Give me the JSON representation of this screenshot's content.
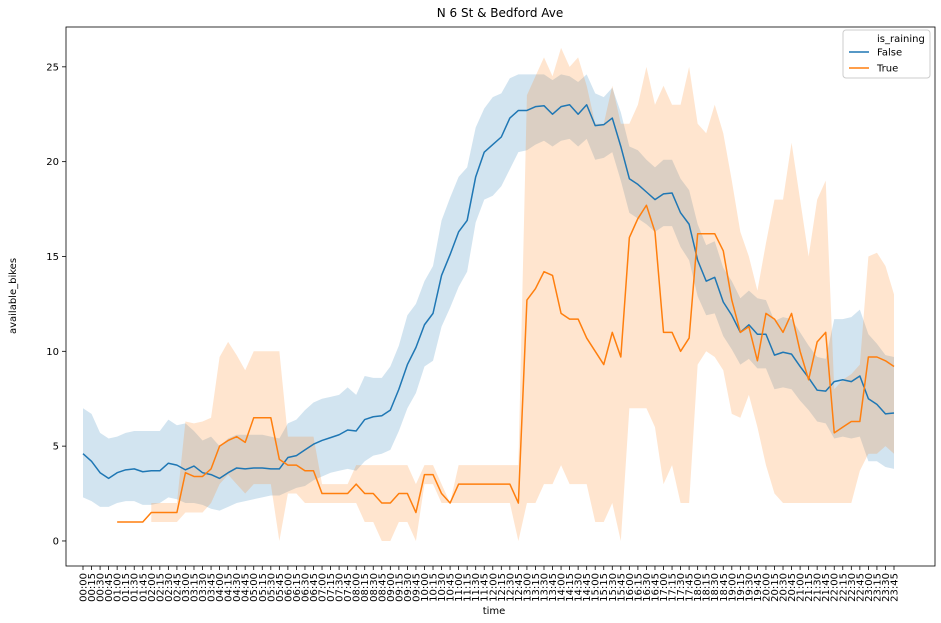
{
  "chart_data": {
    "type": "line",
    "title": "N 6 St & Bedford Ave",
    "xlabel": "time",
    "ylabel": "available_bikes",
    "categories": [
      "00:00",
      "00:15",
      "00:30",
      "00:45",
      "01:00",
      "01:15",
      "01:30",
      "01:45",
      "02:00",
      "02:15",
      "02:30",
      "02:45",
      "03:00",
      "03:15",
      "03:30",
      "03:45",
      "04:00",
      "04:15",
      "04:30",
      "04:45",
      "05:00",
      "05:15",
      "05:30",
      "05:45",
      "06:00",
      "06:15",
      "06:30",
      "06:45",
      "07:00",
      "07:15",
      "07:30",
      "07:45",
      "08:00",
      "08:15",
      "08:30",
      "08:45",
      "09:00",
      "09:15",
      "09:30",
      "09:45",
      "10:00",
      "10:15",
      "10:30",
      "10:45",
      "11:00",
      "11:15",
      "11:30",
      "11:45",
      "12:00",
      "12:15",
      "12:30",
      "12:45",
      "13:00",
      "13:15",
      "13:30",
      "13:45",
      "14:00",
      "14:15",
      "14:30",
      "14:45",
      "15:00",
      "15:15",
      "15:30",
      "15:45",
      "16:00",
      "16:15",
      "16:30",
      "16:45",
      "17:00",
      "17:15",
      "17:30",
      "17:45",
      "18:00",
      "18:15",
      "18:30",
      "18:45",
      "19:00",
      "19:15",
      "19:30",
      "19:45",
      "20:00",
      "20:15",
      "20:30",
      "20:45",
      "21:00",
      "21:15",
      "21:30",
      "21:45",
      "22:00",
      "22:15",
      "22:30",
      "22:45",
      "23:00",
      "23:15",
      "23:30",
      "23:45"
    ],
    "legend_title": "is_raining",
    "legend": "upper right",
    "series": [
      {
        "name": "False",
        "color": "#1f77b4",
        "values": [
          4.6,
          4.2,
          3.6,
          3.3,
          3.6,
          3.75,
          3.8,
          3.65,
          3.7,
          3.7,
          4.1,
          4.0,
          3.75,
          3.95,
          3.6,
          3.5,
          3.3,
          3.6,
          3.85,
          3.8,
          3.85,
          3.85,
          3.8,
          3.8,
          4.4,
          4.5,
          4.8,
          5.1,
          5.3,
          5.45,
          5.6,
          5.85,
          5.8,
          6.4,
          6.55,
          6.6,
          6.9,
          8.0,
          9.3,
          10.2,
          11.4,
          12.0,
          14.0,
          15.1,
          16.3,
          16.9,
          19.2,
          20.5,
          20.9,
          21.3,
          22.3,
          22.7,
          22.7,
          22.9,
          22.95,
          22.5,
          22.9,
          23.0,
          22.5,
          23.0,
          21.9,
          21.95,
          22.3,
          20.8,
          19.1,
          18.8,
          18.4,
          18.0,
          18.3,
          18.35,
          17.3,
          16.7,
          14.8,
          13.7,
          13.9,
          12.6,
          11.9,
          11.0,
          11.4,
          10.9,
          10.9,
          9.8,
          9.95,
          9.85,
          9.2,
          8.6,
          7.95,
          7.9,
          8.4,
          8.5,
          8.4,
          8.7,
          7.5,
          7.2,
          6.7,
          6.75
        ],
        "lower": [
          2.3,
          2.1,
          1.8,
          1.8,
          2.0,
          2.1,
          2.1,
          1.9,
          1.9,
          2.0,
          2.3,
          2.2,
          2.0,
          2.0,
          1.9,
          1.7,
          1.6,
          1.8,
          2.0,
          2.1,
          2.2,
          2.3,
          2.4,
          2.4,
          2.6,
          2.8,
          2.9,
          3.2,
          3.4,
          3.6,
          3.7,
          3.8,
          3.7,
          4.2,
          4.5,
          4.6,
          4.8,
          5.8,
          7.0,
          7.8,
          9.2,
          9.5,
          11.3,
          12.3,
          13.4,
          14.2,
          16.8,
          18.0,
          18.2,
          18.7,
          19.6,
          20.5,
          20.6,
          20.9,
          21.1,
          20.8,
          21.1,
          21.2,
          20.8,
          21.2,
          20.1,
          20.2,
          20.5,
          19.0,
          17.3,
          17.0,
          16.7,
          16.3,
          16.6,
          16.6,
          15.5,
          14.8,
          12.9,
          11.9,
          12.0,
          10.8,
          10.1,
          9.3,
          9.6,
          9.1,
          9.1,
          8.0,
          8.1,
          8.0,
          7.4,
          6.9,
          6.3,
          6.2,
          5.4,
          5.5,
          5.4,
          5.5,
          4.2,
          4.2,
          3.9,
          3.8
        ],
        "upper": [
          7.0,
          6.7,
          5.7,
          5.4,
          5.5,
          5.7,
          5.8,
          5.8,
          5.8,
          5.8,
          6.4,
          6.1,
          6.2,
          5.8,
          5.3,
          5.5,
          5.0,
          5.4,
          5.6,
          5.6,
          5.6,
          5.6,
          5.5,
          5.4,
          6.2,
          6.4,
          6.9,
          7.3,
          7.5,
          7.6,
          7.7,
          8.1,
          7.7,
          8.7,
          8.6,
          8.6,
          9.2,
          10.3,
          11.9,
          12.5,
          13.7,
          14.5,
          16.9,
          18.1,
          19.2,
          19.7,
          21.8,
          22.8,
          23.4,
          23.6,
          24.4,
          24.6,
          24.6,
          24.6,
          24.6,
          24.3,
          24.6,
          24.5,
          24.2,
          24.6,
          23.6,
          23.4,
          23.9,
          22.6,
          20.8,
          20.6,
          20.1,
          19.7,
          20.1,
          20.1,
          19.1,
          18.5,
          16.7,
          15.6,
          15.8,
          14.4,
          13.7,
          12.8,
          13.2,
          12.8,
          12.7,
          11.6,
          11.8,
          11.7,
          11.0,
          10.3,
          9.7,
          9.6,
          11.7,
          11.7,
          11.8,
          12.2,
          10.9,
          10.4,
          9.8,
          9.7
        ]
      },
      {
        "name": "True",
        "color": "#ff7f0e",
        "values": [
          null,
          null,
          null,
          null,
          1,
          1,
          1,
          1,
          1.5,
          1.5,
          1.5,
          1.5,
          3.6,
          3.4,
          3.4,
          3.8,
          5.0,
          5.3,
          5.5,
          5.2,
          6.5,
          6.5,
          6.5,
          4.3,
          4.0,
          4.0,
          3.7,
          3.7,
          2.5,
          2.5,
          2.5,
          2.5,
          3.0,
          2.5,
          2.5,
          2.0,
          2.0,
          2.5,
          2.5,
          1.5,
          3.5,
          3.5,
          2.5,
          2.0,
          3.0,
          3.0,
          3.0,
          3.0,
          3.0,
          3.0,
          3.0,
          2.0,
          12.7,
          13.3,
          14.2,
          14.0,
          12.0,
          11.7,
          11.7,
          10.7,
          10.0,
          9.3,
          11.0,
          9.7,
          16.0,
          17.0,
          17.7,
          16.3,
          11.0,
          11.0,
          10.0,
          10.7,
          16.2,
          16.2,
          16.2,
          15.3,
          12.7,
          11.0,
          11.3,
          9.5,
          12.0,
          11.7,
          11.0,
          12.0,
          10.0,
          8.5,
          10.5,
          11.0,
          5.7,
          6.0,
          6.3,
          6.3,
          9.7,
          9.7,
          9.5,
          9.2
        ],
        "lower": [
          null,
          null,
          null,
          null,
          null,
          null,
          null,
          null,
          1,
          1,
          1,
          1,
          1.5,
          1.5,
          1.5,
          2,
          3,
          3.5,
          3,
          2.5,
          3,
          3,
          3,
          0,
          2.5,
          2.5,
          2,
          2,
          2,
          2,
          2,
          2,
          2,
          1,
          1,
          0,
          0,
          1,
          1,
          0,
          3,
          3,
          2,
          2,
          2,
          2,
          2,
          2,
          2,
          2,
          2,
          0,
          2,
          2,
          3,
          3,
          4,
          3,
          3,
          3,
          1,
          1,
          2,
          0,
          7,
          7,
          7,
          6,
          3,
          4,
          2,
          2,
          9.3,
          10,
          9.7,
          9,
          6.7,
          6.5,
          7.7,
          6,
          4,
          2.5,
          2,
          2,
          2,
          2,
          2,
          2,
          2,
          2,
          2,
          3.7,
          4.6,
          4.6,
          5,
          4.6
        ],
        "upper": [
          null,
          null,
          null,
          null,
          null,
          null,
          null,
          null,
          2,
          2,
          2,
          2,
          6.3,
          6.2,
          6.3,
          6.5,
          9.7,
          10.5,
          9.8,
          9.0,
          10,
          10,
          10,
          10,
          5.5,
          5.5,
          5.5,
          5.5,
          3,
          3,
          3,
          3,
          4,
          4,
          4,
          4,
          4,
          4,
          4,
          3,
          4,
          4,
          3,
          2,
          4,
          4,
          4,
          4,
          4,
          4,
          4,
          4,
          23.5,
          24.5,
          25.5,
          24.5,
          26,
          25,
          25.5,
          24,
          22,
          22,
          24,
          22,
          22,
          23,
          25,
          23,
          24,
          23,
          23,
          25,
          22,
          21.5,
          23,
          21.5,
          19,
          16.3,
          15,
          13.2,
          15.7,
          18,
          18,
          21,
          18,
          15,
          18,
          19,
          8,
          8.5,
          8.8,
          9.3,
          15,
          15.2,
          14.5,
          13
        ]
      }
    ],
    "ylim": [
      -1.32,
      27.1
    ],
    "yticks": [
      0,
      5,
      10,
      15,
      20,
      25
    ]
  }
}
